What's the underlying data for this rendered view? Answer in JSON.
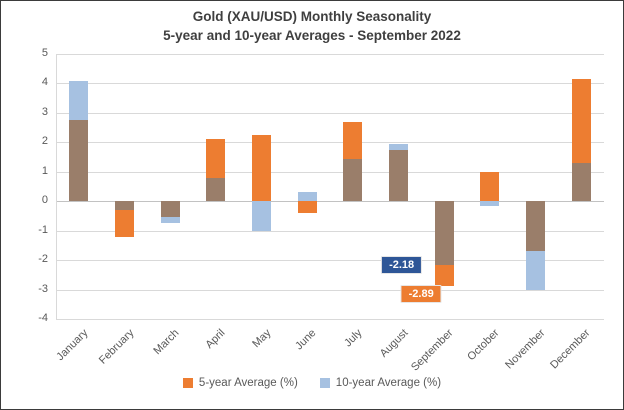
{
  "title": {
    "line1": "Gold (XAU/USD) Monthly Seasonality",
    "line2": "5-year and 10-year Averages - September 2022"
  },
  "chart_data": {
    "type": "bar",
    "title": "Gold (XAU/USD) Monthly Seasonality",
    "subtitle": "5-year and 10-year Averages - September 2022",
    "categories": [
      "January",
      "February",
      "March",
      "April",
      "May",
      "June",
      "July",
      "August",
      "September",
      "October",
      "November",
      "December"
    ],
    "series": [
      {
        "name": "5-year Average (%)",
        "key": "five_year",
        "color": "#ED7D31",
        "values": [
          2.75,
          -1.2,
          -0.55,
          2.1,
          2.25,
          -0.4,
          2.7,
          1.75,
          -2.89,
          1.0,
          -1.7,
          4.15
        ]
      },
      {
        "name": "10-year Average (%)",
        "key": "ten_year",
        "color": "#A6C1E1",
        "values": [
          4.1,
          -0.3,
          -0.75,
          0.8,
          -1.0,
          0.3,
          1.45,
          1.95,
          -2.18,
          -0.15,
          -3.0,
          1.3
        ]
      }
    ],
    "overlap_color": "#9A7E6A",
    "ylim": [
      -4,
      5
    ],
    "ytick_step": 1,
    "yticks": [
      "5",
      "4",
      "3",
      "2",
      "1",
      "0",
      "-1",
      "-2",
      "-3",
      "-4"
    ],
    "grid": true,
    "legend_position": "bottom",
    "annotations": [
      {
        "label": "-2.18",
        "series": "ten_year",
        "month_index": 8,
        "value": -2.18,
        "bg": "#2E5697",
        "fg": "#FFFFFF"
      },
      {
        "label": "-2.89",
        "series": "five_year",
        "month_index": 8,
        "value": -2.89,
        "bg": "#ED7D31",
        "fg": "#FFFFFF"
      }
    ]
  },
  "legend": {
    "items": [
      {
        "label": "5-year Average (%)"
      },
      {
        "label": "10-year Average (%)"
      }
    ]
  }
}
